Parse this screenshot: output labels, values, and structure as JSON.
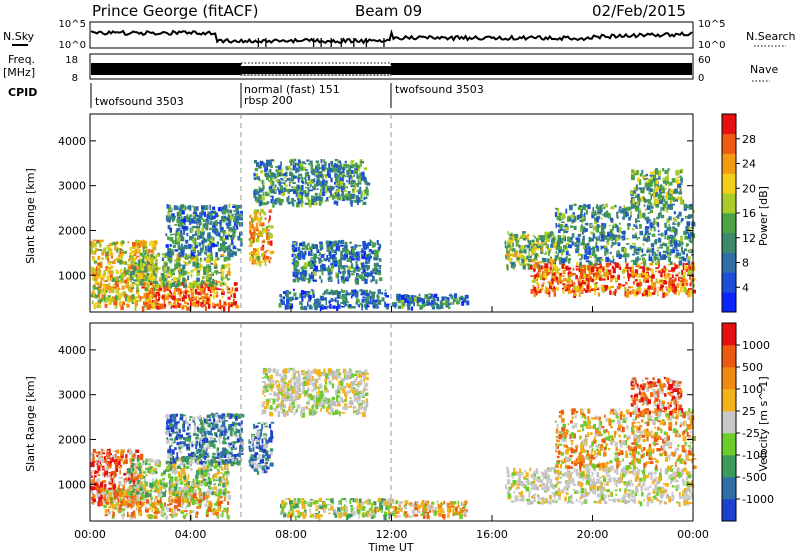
{
  "header": {
    "station": "Prince George (fitACF)",
    "beam": "Beam 09",
    "date": "02/Feb/2015"
  },
  "top_panels": {
    "nsky_label": "N.Sky",
    "nsearch_label": "N.Search",
    "nsky_ticks": [
      "10^5",
      "10^0"
    ],
    "nsearch_ticks": [
      "10^5",
      "10^0"
    ],
    "freq_label": "Freq.",
    "freq_unit": "[MHz]",
    "freq_ticks": [
      "18",
      "8"
    ],
    "nave_label": "Nave",
    "nave_ticks": [
      "60",
      "0"
    ],
    "cpid_label": "CPID",
    "cpid_segments": [
      {
        "name": "twofsound 3503",
        "start_hour": 0,
        "end_hour": 6
      },
      {
        "name": "normal (fast) 151",
        "start_hour": 6,
        "end_hour": 12
      },
      {
        "name": "rbsp 200",
        "start_hour": 6,
        "end_hour": 12
      },
      {
        "name": "twofsound 3503",
        "start_hour": 12,
        "end_hour": 24
      }
    ]
  },
  "chart_data": [
    {
      "type": "heatmap",
      "quantity": "power",
      "ylabel": "Slant Range [km]",
      "xlabel": "",
      "xlim": [
        0,
        24
      ],
      "ylim": [
        180,
        4600
      ],
      "yticks": [
        1000,
        2000,
        3000,
        4000
      ],
      "colorbar": {
        "label": "Power [dB]",
        "ticks": [
          "4",
          "8",
          "12",
          "16",
          "20",
          "24",
          "28"
        ],
        "colors": [
          "#0b24ff",
          "#1c4fd6",
          "#2e6fa6",
          "#3c8a6a",
          "#4aa345",
          "#a9cc2a",
          "#f2cf16",
          "#f49a10",
          "#ef5a12",
          "#e8100f"
        ]
      },
      "regions": [
        {
          "t0": 0.0,
          "t1": 2.6,
          "r0": 300,
          "r1": 1800,
          "level": 0.65
        },
        {
          "t0": 2.0,
          "t1": 5.8,
          "r0": 300,
          "r1": 900,
          "level": 0.85
        },
        {
          "t0": 1.5,
          "t1": 5.5,
          "r0": 800,
          "r1": 1500,
          "level": 0.5
        },
        {
          "t0": 3.0,
          "t1": 6.0,
          "r0": 1500,
          "r1": 2600,
          "level": 0.3
        },
        {
          "t0": 6.3,
          "t1": 7.2,
          "r0": 1300,
          "r1": 2500,
          "level": 0.7
        },
        {
          "t0": 6.5,
          "t1": 11.0,
          "r0": 2600,
          "r1": 3600,
          "level": 0.35
        },
        {
          "t0": 7.5,
          "t1": 11.8,
          "r0": 300,
          "r1": 700,
          "level": 0.25
        },
        {
          "t0": 8.0,
          "t1": 11.5,
          "r0": 900,
          "r1": 1800,
          "level": 0.3
        },
        {
          "t0": 12.0,
          "t1": 15.0,
          "r0": 300,
          "r1": 600,
          "level": 0.3
        },
        {
          "t0": 16.5,
          "t1": 18.5,
          "r0": 1200,
          "r1": 2000,
          "level": 0.5
        },
        {
          "t0": 17.5,
          "t1": 24.0,
          "r0": 600,
          "r1": 1300,
          "level": 0.8
        },
        {
          "t0": 18.5,
          "t1": 24.0,
          "r0": 1300,
          "r1": 2600,
          "level": 0.35
        },
        {
          "t0": 21.5,
          "t1": 23.5,
          "r0": 2600,
          "r1": 3400,
          "level": 0.45
        }
      ]
    },
    {
      "type": "heatmap",
      "quantity": "velocity",
      "ylabel": "Slant Range [km]",
      "xlabel": "Time UT",
      "xlim": [
        0,
        24
      ],
      "ylim": [
        180,
        4600
      ],
      "yticks": [
        1000,
        2000,
        3000,
        4000
      ],
      "xticks": [
        "00:00",
        "04:00",
        "08:00",
        "12:00",
        "16:00",
        "20:00",
        "00:00"
      ],
      "colorbar": {
        "label": "Velocity [m s^-1]",
        "ticks": [
          "1000",
          "500",
          "100",
          "25",
          "-25",
          "-100",
          "-500",
          "-1000"
        ],
        "colors": [
          "#1f3fd0",
          "#2e6fa6",
          "#3c9a5a",
          "#6ccc2a",
          "#c8c8c8",
          "#f2b21a",
          "#f08a10",
          "#ec5a12",
          "#e8100f"
        ]
      },
      "regions": [
        {
          "t0": 0.0,
          "t1": 2.0,
          "r0": 600,
          "r1": 1800,
          "level": "red"
        },
        {
          "t0": 0.5,
          "t1": 5.5,
          "r0": 300,
          "r1": 900,
          "level": "orange"
        },
        {
          "t0": 1.5,
          "t1": 5.5,
          "r0": 800,
          "r1": 1600,
          "level": "green"
        },
        {
          "t0": 3.0,
          "t1": 6.0,
          "r0": 1500,
          "r1": 2600,
          "level": "blue"
        },
        {
          "t0": 6.3,
          "t1": 7.2,
          "r0": 1300,
          "r1": 2400,
          "level": "blue"
        },
        {
          "t0": 6.8,
          "t1": 11.0,
          "r0": 2600,
          "r1": 3600,
          "level": "grey"
        },
        {
          "t0": 7.5,
          "t1": 12.0,
          "r0": 300,
          "r1": 700,
          "level": "green"
        },
        {
          "t0": 12.0,
          "t1": 15.0,
          "r0": 300,
          "r1": 650,
          "level": "orange"
        },
        {
          "t0": 16.5,
          "t1": 24.0,
          "r0": 600,
          "r1": 1400,
          "level": "grey"
        },
        {
          "t0": 18.5,
          "t1": 24.0,
          "r0": 1400,
          "r1": 2700,
          "level": "orange"
        },
        {
          "t0": 21.5,
          "t1": 23.5,
          "r0": 2600,
          "r1": 3400,
          "level": "red"
        }
      ]
    }
  ]
}
